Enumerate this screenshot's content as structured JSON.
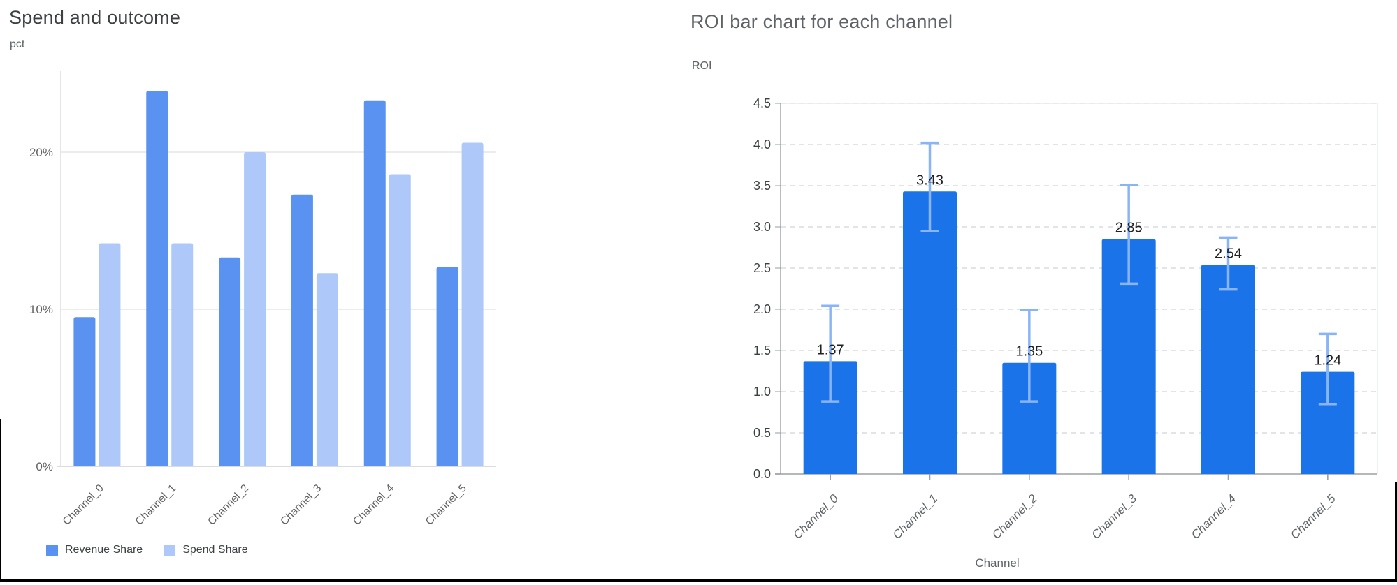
{
  "chart_data": [
    {
      "type": "bar",
      "title": "Spend and outcome",
      "ylabel": "pct",
      "xlabel": "",
      "categories": [
        "Channel_0",
        "Channel_1",
        "Channel_2",
        "Channel_3",
        "Channel_4",
        "Channel_5"
      ],
      "series": [
        {
          "name": "Revenue Share",
          "color": "#5a92f1",
          "values": [
            9.5,
            23.9,
            13.3,
            17.3,
            23.3,
            12.7
          ]
        },
        {
          "name": "Spend Share",
          "color": "#aec9f9",
          "values": [
            14.2,
            14.2,
            20.0,
            12.3,
            18.6,
            20.6
          ]
        }
      ],
      "ylim": [
        0,
        25.2
      ],
      "yticks": [
        0,
        10,
        20
      ],
      "ytick_labels": [
        "0%",
        "10%",
        "20%"
      ],
      "grid": "solid-horizontal",
      "legend_position": "bottom"
    },
    {
      "type": "bar",
      "title": "ROI bar chart for each channel",
      "ylabel": "ROI",
      "xlabel": "Channel",
      "categories": [
        "Channel_0",
        "Channel_1",
        "Channel_2",
        "Channel_3",
        "Channel_4",
        "Channel_5"
      ],
      "values": [
        1.37,
        3.43,
        1.35,
        2.85,
        2.54,
        1.24
      ],
      "value_labels": [
        "1.37",
        "3.43",
        "1.35",
        "2.85",
        "2.54",
        "1.24"
      ],
      "error_low": [
        0.88,
        2.95,
        0.88,
        2.31,
        2.24,
        0.85
      ],
      "error_high": [
        2.04,
        4.02,
        1.99,
        3.51,
        2.87,
        1.7
      ],
      "bar_color": "#1a73e8",
      "error_color": "#8ab4f8",
      "ylim": [
        0,
        4.5
      ],
      "yticks": [
        0,
        0.5,
        1.0,
        1.5,
        2.0,
        2.5,
        3.0,
        3.5,
        4.0,
        4.5
      ],
      "ytick_labels": [
        "0.0",
        "0.5",
        "1.0",
        "1.5",
        "2.0",
        "2.5",
        "3.0",
        "3.5",
        "4.0",
        "4.5"
      ],
      "grid": "dashed-horizontal",
      "legend_position": "none"
    }
  ],
  "colors": {
    "grid_line": "#e6e6e6",
    "grid_dashed": "#dadce0",
    "axis_line": "#9aa0a6",
    "axis_light": "#dadce0",
    "plot_border": "#e8eaed",
    "tick_label": "#616161",
    "tick_label_dark": "#3c4043",
    "x_label": "#5f6368",
    "value_label": "#202124",
    "frame": "#000000"
  }
}
